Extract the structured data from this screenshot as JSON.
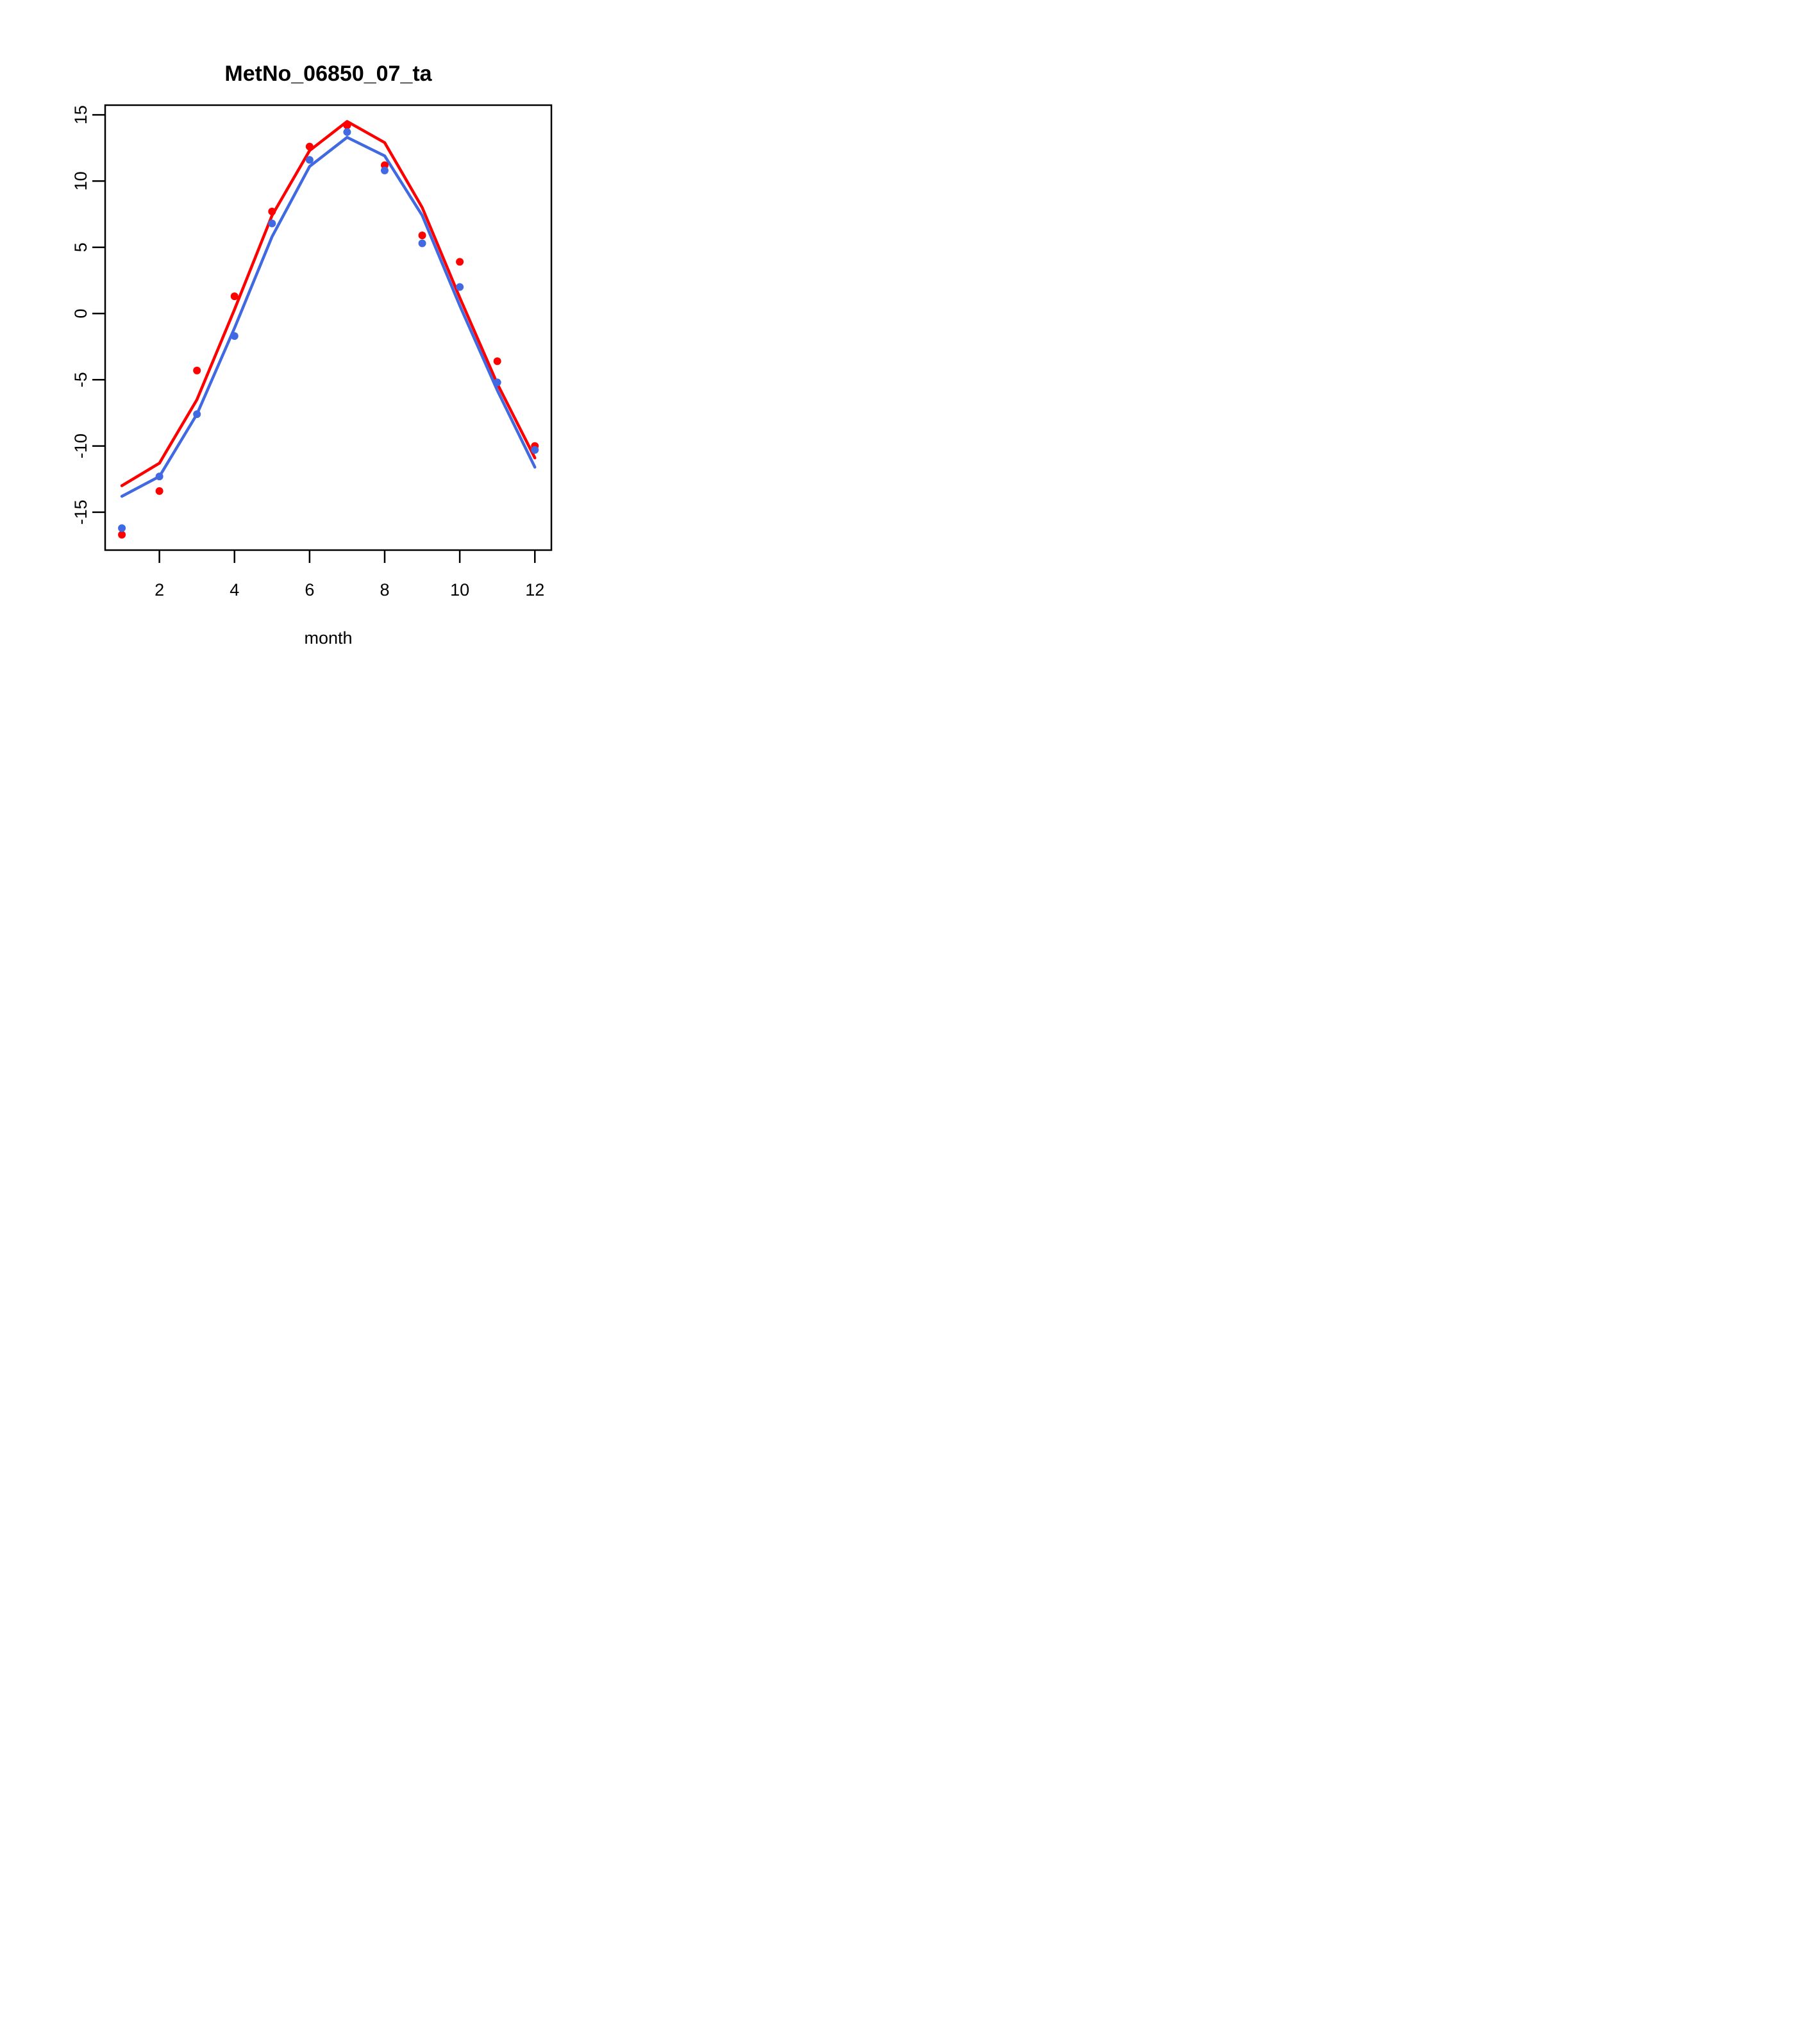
{
  "chart_data": {
    "type": "line",
    "title": "MetNo_06850_07_ta",
    "xlabel": "month",
    "ylabel": "",
    "x": [
      1,
      2,
      3,
      4,
      5,
      6,
      7,
      8,
      9,
      10,
      11,
      12
    ],
    "xticks": [
      2,
      4,
      6,
      8,
      10,
      12
    ],
    "yticks": [
      15,
      10,
      5,
      0,
      -5,
      -10,
      -15
    ],
    "xlim": [
      0.555,
      12.44
    ],
    "ylim": [
      -17.86,
      15.73
    ],
    "grid": false,
    "legend": "none",
    "frame_color": "#000000",
    "background": "#ffffff",
    "series": [
      {
        "name": "red-line",
        "type": "line",
        "color": "#ff0000",
        "values": [
          -13.0,
          -11.3,
          -6.5,
          0.3,
          7.4,
          12.3,
          14.5,
          12.9,
          8.0,
          1.2,
          -5.3,
          -10.9
        ]
      },
      {
        "name": "blue-line",
        "type": "line",
        "color": "#4169e1",
        "values": [
          -13.8,
          -12.3,
          -7.6,
          -1.1,
          5.8,
          11.1,
          13.3,
          11.9,
          7.4,
          0.6,
          -5.8,
          -11.6
        ]
      },
      {
        "name": "red-points",
        "type": "scatter",
        "color": "#ff0000",
        "values": [
          -16.7,
          -13.4,
          -4.3,
          1.3,
          7.7,
          12.6,
          14.2,
          11.2,
          5.9,
          3.9,
          -3.6,
          -10.0
        ]
      },
      {
        "name": "blue-points",
        "type": "scatter",
        "color": "#4169e1",
        "values": [
          -16.2,
          -12.3,
          -7.6,
          -1.7,
          6.8,
          11.6,
          13.7,
          10.8,
          5.3,
          2.0,
          -5.2,
          -10.3
        ]
      }
    ]
  }
}
